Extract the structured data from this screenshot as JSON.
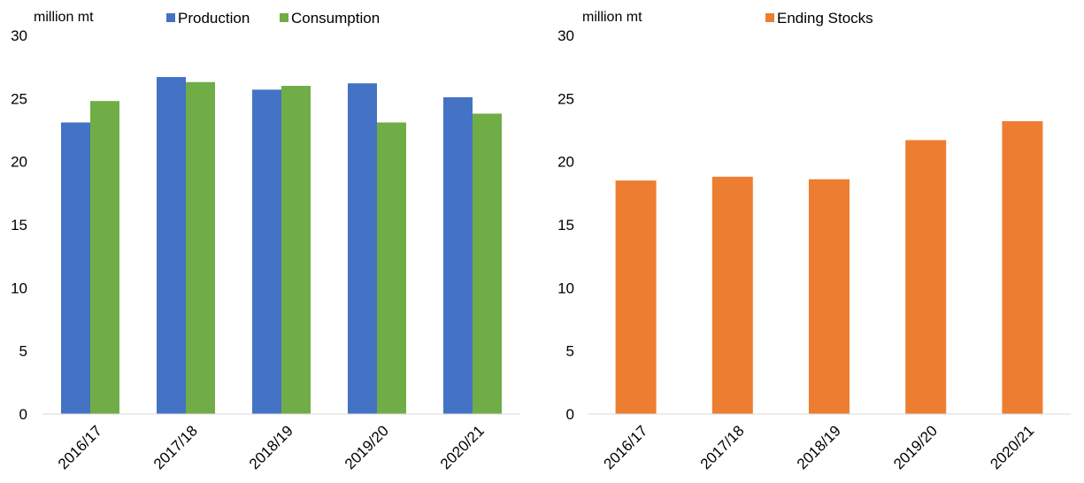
{
  "chart_data": [
    {
      "type": "bar",
      "ylabel": "million mt",
      "ylim": [
        0,
        30
      ],
      "yticks": [
        0,
        5,
        10,
        15,
        20,
        25,
        30
      ],
      "categories": [
        "2016/17",
        "2017/18",
        "2018/19",
        "2019/20",
        "2020/21"
      ],
      "legend_position": "top",
      "grid": false,
      "series": [
        {
          "name": "Production",
          "color": "#4472C4",
          "values": [
            23.1,
            26.7,
            25.7,
            26.2,
            25.1
          ]
        },
        {
          "name": "Consumption",
          "color": "#70AD47",
          "values": [
            24.8,
            26.3,
            26.0,
            23.1,
            23.8
          ]
        }
      ]
    },
    {
      "type": "bar",
      "ylabel": "million mt",
      "ylim": [
        0,
        30
      ],
      "yticks": [
        0,
        5,
        10,
        15,
        20,
        25,
        30
      ],
      "categories": [
        "2016/17",
        "2017/18",
        "2018/19",
        "2019/20",
        "2020/21"
      ],
      "legend_position": "top",
      "grid": false,
      "series": [
        {
          "name": "Ending Stocks",
          "color": "#ED7D31",
          "values": [
            18.5,
            18.8,
            18.6,
            21.7,
            23.2
          ]
        }
      ]
    }
  ]
}
